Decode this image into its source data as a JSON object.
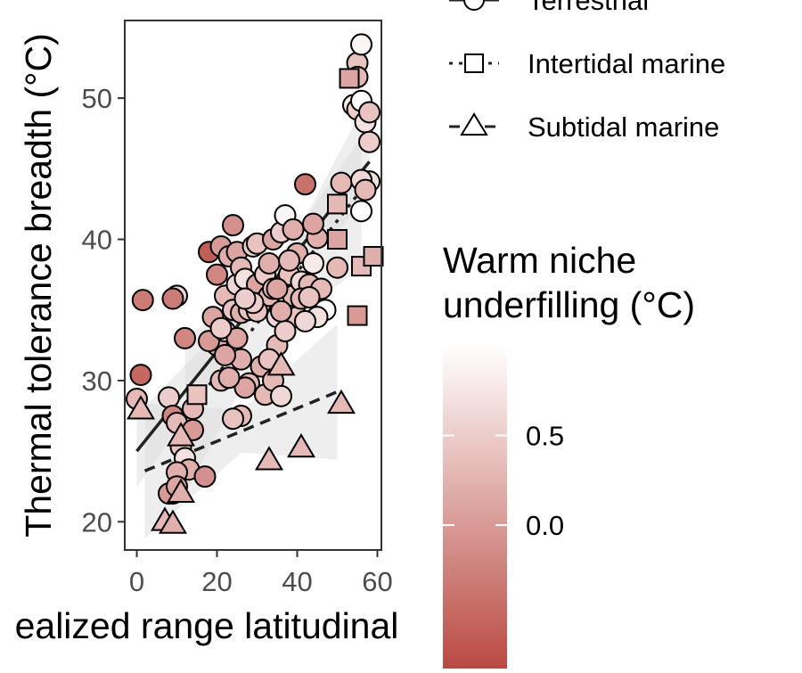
{
  "chart_data": {
    "type": "scatter",
    "title": "",
    "xlabel": "ealized range latitudinal",
    "ylabel": "Thermal tolerance breadth (°C)",
    "xlim": [
      -3,
      61
    ],
    "ylim": [
      18,
      55.5
    ],
    "x_ticks": [
      "0",
      "20",
      "40",
      "60"
    ],
    "y_ticks": [
      "20",
      "30",
      "40",
      "50"
    ],
    "grid": false,
    "legend_position": "right",
    "shape_legend": {
      "title": "",
      "entries": [
        {
          "label": "Terrestrial",
          "shape": "circle",
          "line": "solid"
        },
        {
          "label": "Intertidal marine",
          "shape": "square",
          "line": "dotted"
        },
        {
          "label": "Subtidal marine",
          "shape": "triangle",
          "line": "dashed"
        }
      ]
    },
    "color_legend": {
      "title_line1": "Warm niche",
      "title_line2": "underfilling (°C)",
      "range": [
        -0.8,
        1.0
      ],
      "ticks": [
        {
          "label": "0.5",
          "value": 0.5
        },
        {
          "label": "0.0",
          "value": 0.0
        }
      ],
      "low_color": "#b94a42",
      "high_color": "#ffffff"
    },
    "series": [
      {
        "name": "Terrestrial",
        "shape": "circle",
        "points": [
          [
            0,
            28.7,
            0.3
          ],
          [
            1,
            30.4,
            -0.5
          ],
          [
            1.5,
            35.7,
            -0.3
          ],
          [
            10,
            36,
            0.6
          ],
          [
            9,
            35.8,
            -0.3
          ],
          [
            8,
            28.8,
            0.5
          ],
          [
            9,
            27.5,
            -0.2
          ],
          [
            10,
            27,
            0.3
          ],
          [
            11,
            25.3,
            0.4
          ],
          [
            12,
            24.5,
            0.7
          ],
          [
            13,
            23.7,
            0.2
          ],
          [
            10,
            23.5,
            0.2
          ],
          [
            9,
            22,
            0.1
          ],
          [
            8,
            22,
            0.0
          ],
          [
            10,
            22.5,
            0.1
          ],
          [
            12,
            33,
            -0.2
          ],
          [
            14,
            26.5,
            0.0
          ],
          [
            14,
            28,
            0.3
          ],
          [
            17,
            23.2,
            -0.1
          ],
          [
            18,
            39.1,
            -0.6
          ],
          [
            20,
            37.5,
            -0.2
          ],
          [
            21,
            39.5,
            0.0
          ],
          [
            19,
            34.5,
            0.1
          ],
          [
            20,
            32.5,
            0.2
          ],
          [
            18,
            32.8,
            0.0
          ],
          [
            21,
            30,
            0.3
          ],
          [
            22,
            33.5,
            0.6
          ],
          [
            22,
            36,
            0.3
          ],
          [
            23,
            38.8,
            0.2
          ],
          [
            24,
            41,
            -0.1
          ],
          [
            24,
            35,
            0.4
          ],
          [
            25,
            36.8,
            0.6
          ],
          [
            25,
            39.1,
            0.1
          ],
          [
            26,
            38,
            0.3
          ],
          [
            26,
            34.8,
            0.2
          ],
          [
            27,
            37.2,
            0.7
          ],
          [
            28,
            35,
            0.4
          ],
          [
            28,
            29.8,
            0.3
          ],
          [
            25,
            33,
            0.1
          ],
          [
            29,
            39.5,
            0.5
          ],
          [
            30,
            39.7,
            0.4
          ],
          [
            30,
            36.8,
            0.1
          ],
          [
            31,
            35.5,
            0.6
          ],
          [
            32,
            37.5,
            0.5
          ],
          [
            33,
            38.3,
            0.2
          ],
          [
            33,
            36,
            0.3
          ],
          [
            34,
            36.5,
            0.4
          ],
          [
            34,
            40,
            0.1
          ],
          [
            35,
            32.5,
            0.3
          ],
          [
            35,
            34.5,
            0.6
          ],
          [
            36,
            40.5,
            0.5
          ],
          [
            37,
            41.7,
            0.9
          ],
          [
            38,
            37.5,
            0.4
          ],
          [
            39,
            36,
            0.3
          ],
          [
            40,
            39,
            0.2
          ],
          [
            41,
            37,
            0.6
          ],
          [
            42,
            43.9,
            -0.4
          ],
          [
            43,
            36.8,
            0.3
          ],
          [
            44,
            38.3,
            0.8
          ],
          [
            45,
            40.1,
            0.2
          ],
          [
            44,
            41.1,
            0.1
          ],
          [
            46,
            36.5,
            0.3
          ],
          [
            47,
            35,
            1.0
          ],
          [
            45,
            34.5,
            0.7
          ],
          [
            30,
            34.9,
            0.4
          ],
          [
            29,
            35.5,
            0.5
          ],
          [
            31,
            31,
            0.2
          ],
          [
            32,
            29,
            0.3
          ],
          [
            33,
            31.5,
            0.4
          ],
          [
            34,
            30,
            0.3
          ],
          [
            36,
            28.9,
            0.6
          ],
          [
            27,
            35.8,
            0.5
          ],
          [
            26,
            31.5,
            0.2
          ],
          [
            27,
            29.5,
            0.1
          ],
          [
            26,
            27.5,
            0.3
          ],
          [
            24,
            27.3,
            0.4
          ],
          [
            23,
            30.2,
            0.2
          ],
          [
            22,
            31.8,
            0.1
          ],
          [
            21,
            33.7,
            0.5
          ],
          [
            38,
            38.5,
            0.3
          ],
          [
            39,
            40.7,
            0.2
          ],
          [
            40,
            34.5,
            0.4
          ],
          [
            41,
            35.8,
            0.3
          ],
          [
            42,
            34.2,
            0.6
          ],
          [
            43,
            35.9,
            0.4
          ],
          [
            35,
            36.5,
            0.1
          ],
          [
            37,
            33.5,
            0.5
          ],
          [
            36,
            34.9,
            0.2
          ],
          [
            51,
            44,
            0.3
          ],
          [
            50,
            38,
            0.3
          ],
          [
            54,
            49.5,
            0.8
          ],
          [
            55,
            49.2,
            0.5
          ],
          [
            55,
            52.5,
            0.4
          ],
          [
            56,
            49.8,
            1.0
          ],
          [
            56,
            53.8,
            0.9
          ],
          [
            55,
            51.5,
            0.3
          ],
          [
            57,
            48.3,
            0.7
          ],
          [
            58,
            49,
            0.4
          ],
          [
            58,
            46.9,
            0.5
          ],
          [
            58,
            44.1,
            0.7
          ],
          [
            56,
            42,
            1.0
          ],
          [
            56,
            44.2,
            0.6
          ],
          [
            57,
            43.5,
            0.3
          ]
        ]
      },
      {
        "name": "Intertidal marine",
        "shape": "square",
        "points": [
          [
            15,
            29,
            0.4
          ],
          [
            53,
            51.4,
            0.1
          ],
          [
            50,
            42.5,
            0.3
          ],
          [
            50,
            40,
            0.1
          ],
          [
            56,
            38.1,
            0.3
          ],
          [
            59,
            38.8,
            0.2
          ],
          [
            55,
            34.6,
            0.0
          ]
        ]
      },
      {
        "name": "Subtidal marine",
        "shape": "triangle",
        "points": [
          [
            1,
            27.9,
            0.3
          ],
          [
            7,
            20,
            0.3
          ],
          [
            9,
            19.8,
            0.2
          ],
          [
            11,
            22,
            0.2
          ],
          [
            11,
            26,
            0.3
          ],
          [
            33,
            24.3,
            0.3
          ],
          [
            41,
            25.2,
            0.3
          ],
          [
            51,
            28.3,
            0.3
          ],
          [
            36,
            31,
            0.3
          ]
        ]
      }
    ],
    "fit_lines": [
      {
        "name": "Terrestrial",
        "style": "solid",
        "x": [
          0,
          58
        ],
        "y": [
          25,
          45.5
        ]
      },
      {
        "name": "Intertidal marine",
        "style": "dotted",
        "x": [
          12,
          56
        ],
        "y": [
          27.5,
          43.5
        ]
      },
      {
        "name": "Subtidal marine",
        "style": "dashed",
        "x": [
          2,
          50
        ],
        "y": [
          23.6,
          29.2
        ]
      }
    ]
  }
}
